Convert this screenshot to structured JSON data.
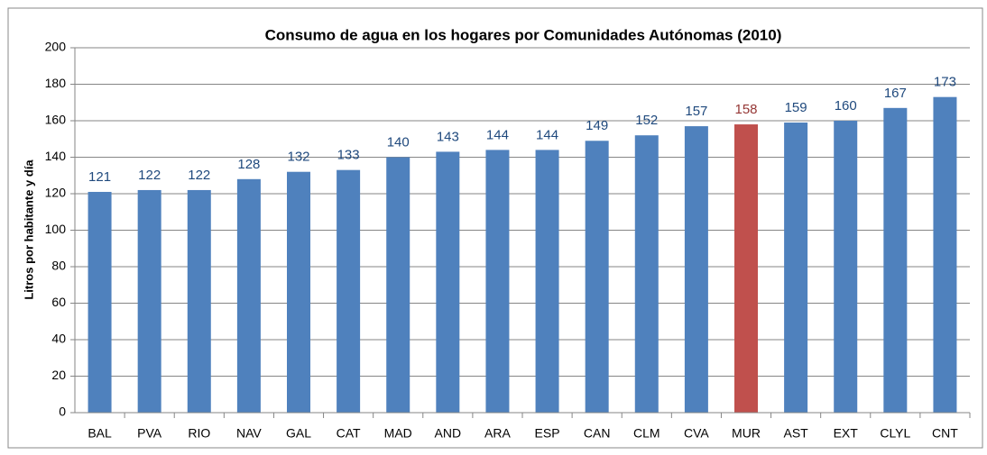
{
  "chart_data": {
    "type": "bar",
    "title": "Consumo de agua en los hogares por Comunidades Autónomas (2010)",
    "y_label": "Litros por habitante y día",
    "categories": [
      "BAL",
      "PVA",
      "RIO",
      "NAV",
      "GAL",
      "CAT",
      "MAD",
      "AND",
      "ARA",
      "ESP",
      "CAN",
      "CLM",
      "CVA",
      "MUR",
      "AST",
      "EXT",
      "CLYL",
      "CNT"
    ],
    "values": [
      121,
      122,
      122,
      128,
      132,
      133,
      140,
      143,
      144,
      144,
      149,
      152,
      157,
      158,
      159,
      160,
      167,
      173
    ],
    "colors": [
      "#4f81bd",
      "#4f81bd",
      "#4f81bd",
      "#4f81bd",
      "#4f81bd",
      "#4f81bd",
      "#4f81bd",
      "#4f81bd",
      "#4f81bd",
      "#4f81bd",
      "#4f81bd",
      "#4f81bd",
      "#4f81bd",
      "#c0504d",
      "#4f81bd",
      "#4f81bd",
      "#4f81bd",
      "#4f81bd"
    ],
    "label_colors": [
      "#1f497d",
      "#1f497d",
      "#1f497d",
      "#1f497d",
      "#1f497d",
      "#1f497d",
      "#1f497d",
      "#1f497d",
      "#1f497d",
      "#1f497d",
      "#1f497d",
      "#1f497d",
      "#1f497d",
      "#953735",
      "#1f497d",
      "#1f497d",
      "#1f497d",
      "#1f497d"
    ],
    "ylim": [
      0,
      200
    ],
    "yticks": [
      0,
      20,
      40,
      60,
      80,
      100,
      120,
      140,
      160,
      180,
      200
    ],
    "grid": true
  }
}
